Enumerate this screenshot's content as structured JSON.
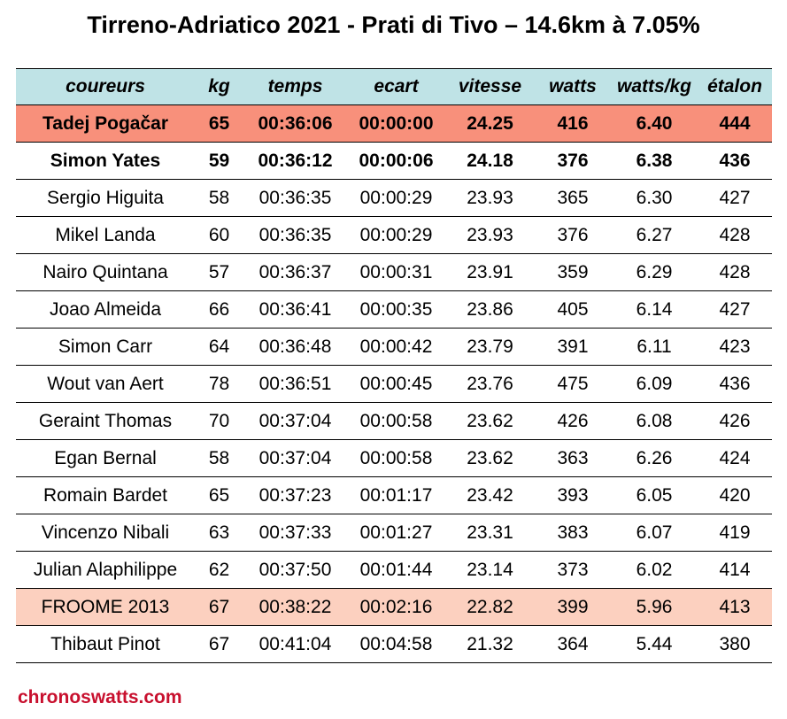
{
  "title": "Tirreno-Adriatico 2021 - Prati di Tivo – 14.6km à 7.05%",
  "footer": "chronoswatts.com",
  "colors": {
    "header_bg": "#bfe3e6",
    "winner_bg": "#f8907b",
    "reference_bg": "#fcd0bf",
    "footer_text": "#c8102e"
  },
  "chart_data": {
    "type": "table",
    "title": "Tirreno-Adriatico 2021 - Prati di Tivo – 14.6km à 7.05%",
    "columns": [
      "coureurs",
      "kg",
      "temps",
      "ecart",
      "vitesse",
      "watts",
      "watts/kg",
      "étalon"
    ],
    "rows": [
      {
        "coureur": "Tadej Pogačar",
        "kg": "65",
        "temps": "00:36:06",
        "ecart": "00:00:00",
        "vitesse": "24.25",
        "watts": "416",
        "wkg": "6.40",
        "etalon": "444",
        "highlight": "winner",
        "bold": true
      },
      {
        "coureur": "Simon Yates",
        "kg": "59",
        "temps": "00:36:12",
        "ecart": "00:00:06",
        "vitesse": "24.18",
        "watts": "376",
        "wkg": "6.38",
        "etalon": "436",
        "highlight": "none",
        "bold": true
      },
      {
        "coureur": "Sergio Higuita",
        "kg": "58",
        "temps": "00:36:35",
        "ecart": "00:00:29",
        "vitesse": "23.93",
        "watts": "365",
        "wkg": "6.30",
        "etalon": "427",
        "highlight": "none",
        "bold": false
      },
      {
        "coureur": "Mikel Landa",
        "kg": "60",
        "temps": "00:36:35",
        "ecart": "00:00:29",
        "vitesse": "23.93",
        "watts": "376",
        "wkg": "6.27",
        "etalon": "428",
        "highlight": "none",
        "bold": false
      },
      {
        "coureur": "Nairo Quintana",
        "kg": "57",
        "temps": "00:36:37",
        "ecart": "00:00:31",
        "vitesse": "23.91",
        "watts": "359",
        "wkg": "6.29",
        "etalon": "428",
        "highlight": "none",
        "bold": false
      },
      {
        "coureur": "Joao Almeida",
        "kg": "66",
        "temps": "00:36:41",
        "ecart": "00:00:35",
        "vitesse": "23.86",
        "watts": "405",
        "wkg": "6.14",
        "etalon": "427",
        "highlight": "none",
        "bold": false
      },
      {
        "coureur": "Simon Carr",
        "kg": "64",
        "temps": "00:36:48",
        "ecart": "00:00:42",
        "vitesse": "23.79",
        "watts": "391",
        "wkg": "6.11",
        "etalon": "423",
        "highlight": "none",
        "bold": false
      },
      {
        "coureur": "Wout van Aert",
        "kg": "78",
        "temps": "00:36:51",
        "ecart": "00:00:45",
        "vitesse": "23.76",
        "watts": "475",
        "wkg": "6.09",
        "etalon": "436",
        "highlight": "none",
        "bold": false
      },
      {
        "coureur": "Geraint Thomas",
        "kg": "70",
        "temps": "00:37:04",
        "ecart": "00:00:58",
        "vitesse": "23.62",
        "watts": "426",
        "wkg": "6.08",
        "etalon": "426",
        "highlight": "none",
        "bold": false
      },
      {
        "coureur": "Egan Bernal",
        "kg": "58",
        "temps": "00:37:04",
        "ecart": "00:00:58",
        "vitesse": "23.62",
        "watts": "363",
        "wkg": "6.26",
        "etalon": "424",
        "highlight": "none",
        "bold": false
      },
      {
        "coureur": "Romain Bardet",
        "kg": "65",
        "temps": "00:37:23",
        "ecart": "00:01:17",
        "vitesse": "23.42",
        "watts": "393",
        "wkg": "6.05",
        "etalon": "420",
        "highlight": "none",
        "bold": false
      },
      {
        "coureur": "Vincenzo Nibali",
        "kg": "63",
        "temps": "00:37:33",
        "ecart": "00:01:27",
        "vitesse": "23.31",
        "watts": "383",
        "wkg": "6.07",
        "etalon": "419",
        "highlight": "none",
        "bold": false
      },
      {
        "coureur": "Julian Alaphilippe",
        "kg": "62",
        "temps": "00:37:50",
        "ecart": "00:01:44",
        "vitesse": "23.14",
        "watts": "373",
        "wkg": "6.02",
        "etalon": "414",
        "highlight": "none",
        "bold": false
      },
      {
        "coureur": "FROOME 2013",
        "kg": "67",
        "temps": "00:38:22",
        "ecart": "00:02:16",
        "vitesse": "22.82",
        "watts": "399",
        "wkg": "5.96",
        "etalon": "413",
        "highlight": "reference",
        "bold": false
      },
      {
        "coureur": "Thibaut Pinot",
        "kg": "67",
        "temps": "00:41:04",
        "ecart": "00:04:58",
        "vitesse": "21.32",
        "watts": "364",
        "wkg": "5.44",
        "etalon": "380",
        "highlight": "none",
        "bold": false
      }
    ]
  }
}
